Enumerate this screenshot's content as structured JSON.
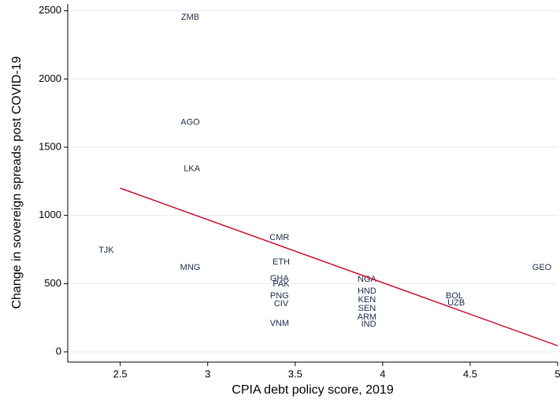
{
  "chart_data": {
    "type": "scatter",
    "x_label": "CPIA debt policy score, 2019",
    "y_label": "Change in sovereign spreads post COVID-19",
    "xlim": [
      2.2,
      5.0
    ],
    "ylim": [
      -75,
      2550
    ],
    "xticks": [
      2.5,
      3,
      3.5,
      4,
      4.5,
      5
    ],
    "yticks": [
      0,
      500,
      1000,
      1500,
      2000,
      2500
    ],
    "grid": true,
    "series": [
      {
        "color": "#1a2a48",
        "labels": [
          "ZMB",
          "AGO",
          "LKA",
          "TJK",
          "MNG",
          "CMR",
          "ETH",
          "GHA",
          "PAK",
          "PNG",
          "CIV",
          "VNM",
          "NGA",
          "HND",
          "KEN",
          "SEN",
          "ARM",
          "IND",
          "BOL",
          "UZB",
          "GEO"
        ],
        "x": [
          2.9,
          2.9,
          2.91,
          2.42,
          2.9,
          3.41,
          3.42,
          3.41,
          3.42,
          3.41,
          3.42,
          3.41,
          3.91,
          3.91,
          3.91,
          3.91,
          3.91,
          3.92,
          4.41,
          4.42,
          4.91
        ],
        "values": [
          2450,
          1680,
          1340,
          745,
          618,
          837,
          658,
          537,
          497,
          410,
          352,
          208,
          531,
          445,
          381,
          318,
          254,
          202,
          410,
          358,
          618
        ]
      },
      {
        "type": "line",
        "color": "#c8102e",
        "x": [
          2.5,
          5
        ],
        "values": [
          1200,
          45
        ]
      }
    ]
  }
}
